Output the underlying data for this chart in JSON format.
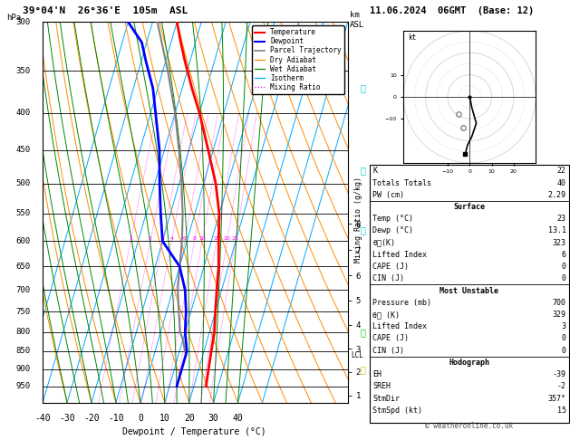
{
  "title_left": "39°04'N  26°36'E  105m  ASL",
  "title_right": "11.06.2024  06GMT  (Base: 12)",
  "xlabel": "Dewpoint / Temperature (°C)",
  "ylabel_left": "hPa",
  "ylabel_right_top1": "km",
  "ylabel_right_top2": "ASL",
  "ylabel_right_mid": "Mixing Ratio (g/kg)",
  "p_min": 300,
  "p_max": 1000,
  "t_min": -40,
  "t_max": 40,
  "pressure_levels": [
    300,
    350,
    400,
    450,
    500,
    550,
    600,
    650,
    700,
    750,
    800,
    850,
    900,
    950
  ],
  "temp_color": "#ff0000",
  "dewp_color": "#0000ff",
  "parcel_color": "#808080",
  "dry_adiabat_color": "#ff8c00",
  "wet_adiabat_color": "#008800",
  "isotherm_color": "#00aaff",
  "mixing_ratio_color": "#ff00ff",
  "background": "#ffffff",
  "km_ticks": [
    1,
    2,
    3,
    4,
    5,
    6,
    7,
    8
  ],
  "km_pressures": [
    977,
    908,
    843,
    782,
    724,
    669,
    617,
    568
  ],
  "mixing_ratio_labels": [
    1,
    2,
    3,
    4,
    6,
    8,
    10,
    15,
    20,
    25
  ],
  "mixing_ratio_p_label": 600,
  "lcl_pressure": 860,
  "temp_profile_p": [
    300,
    320,
    340,
    370,
    400,
    450,
    500,
    550,
    600,
    650,
    700,
    750,
    800,
    850,
    900,
    950
  ],
  "temp_profile_t": [
    -30,
    -26,
    -22,
    -16,
    -10,
    -2,
    5,
    10,
    13,
    16,
    18,
    20,
    22,
    23,
    24,
    25
  ],
  "dewp_profile_p": [
    300,
    320,
    340,
    370,
    400,
    450,
    500,
    550,
    600,
    650,
    700,
    750,
    800,
    850,
    900,
    950
  ],
  "dewp_profile_t": [
    -50,
    -42,
    -38,
    -32,
    -28,
    -22,
    -18,
    -14,
    -10,
    0,
    5,
    8,
    10,
    13,
    13,
    13
  ],
  "parcel_profile_p": [
    860,
    820,
    800,
    750,
    700,
    650,
    600,
    550,
    500,
    450,
    400,
    350,
    300
  ],
  "parcel_profile_t": [
    13,
    10,
    8,
    5,
    2,
    0,
    -2,
    -5,
    -9,
    -14,
    -20,
    -28,
    -38
  ],
  "skew_factor": 45.0,
  "stats_K": 22,
  "stats_TT": 40,
  "stats_PW": "2.29",
  "surf_temp": "23",
  "surf_dewp": "13.1",
  "surf_theta_e": "323",
  "surf_LI": "6",
  "surf_CAPE": "0",
  "surf_CIN": "0",
  "mu_pressure": "700",
  "mu_theta_e": "329",
  "mu_LI": "3",
  "mu_CAPE": "0",
  "mu_CIN": "0",
  "hodo_EH": "-39",
  "hodo_SREH": "-2",
  "hodo_StmDir": "357°",
  "hodo_StmSpd": "15",
  "copyright": "© weatheronline.co.uk",
  "wind_barb_colors": [
    "#00cccc",
    "#00cccc",
    "#00cccc",
    "#00cc00",
    "#cccc00"
  ],
  "wind_barb_pressures": [
    370,
    480,
    580,
    800,
    900
  ]
}
